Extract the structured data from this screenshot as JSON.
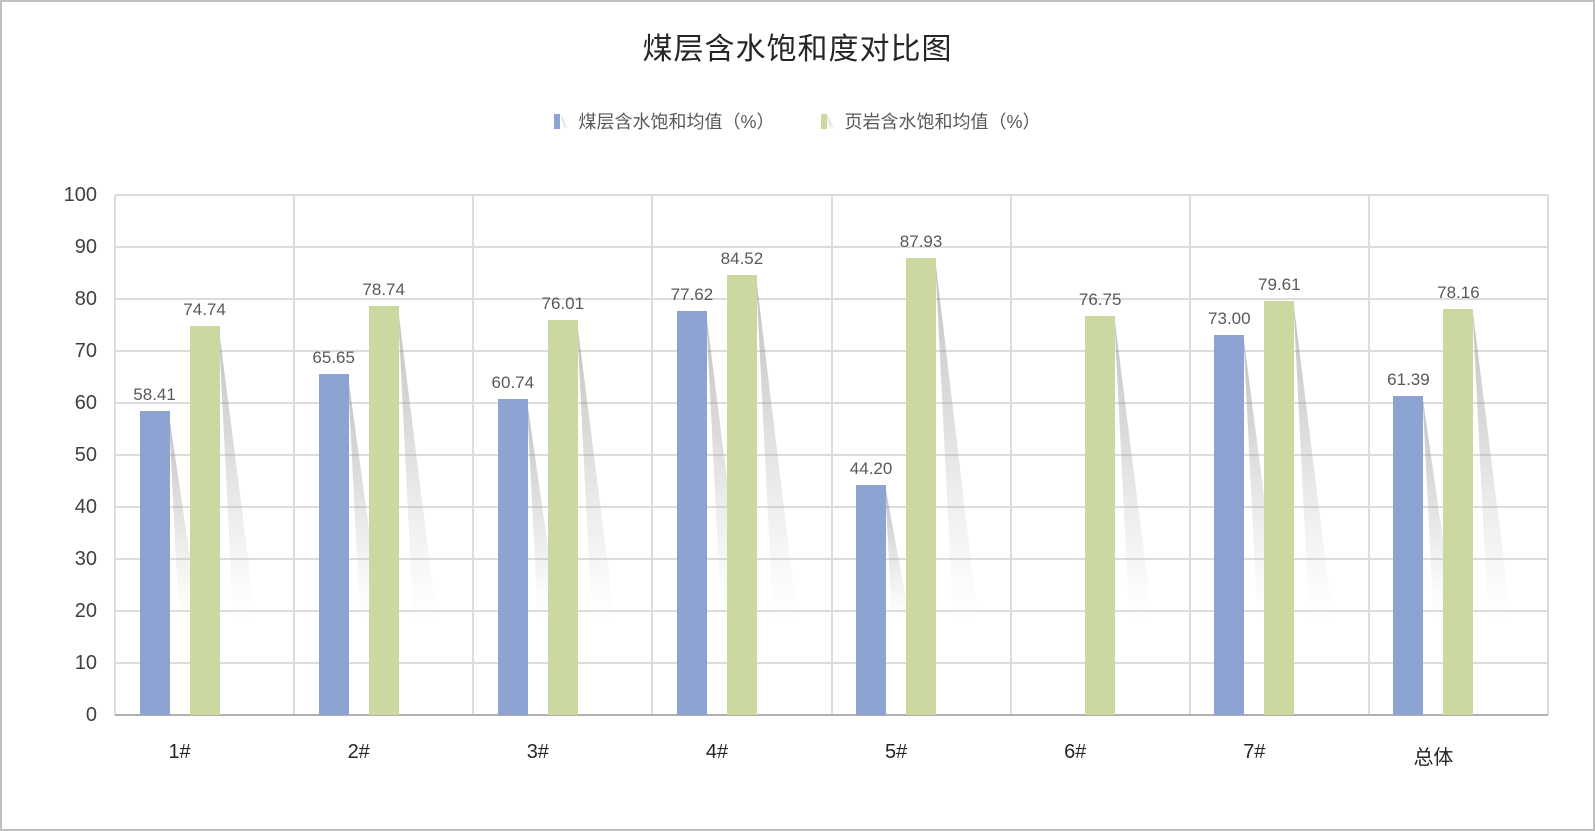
{
  "chart_data": {
    "type": "bar",
    "title": "煤层含水饱和度对比图",
    "categories": [
      "1#",
      "2#",
      "3#",
      "4#",
      "5#",
      "6#",
      "7#",
      "总体"
    ],
    "series": [
      {
        "name": "煤层含水饱和均值（%）",
        "color": "#8DA4D2",
        "values": [
          58.41,
          65.65,
          60.74,
          77.62,
          44.2,
          null,
          73.0,
          61.39
        ]
      },
      {
        "name": "页岩含水饱和均值（%）",
        "color": "#CBD9A1",
        "values": [
          74.74,
          78.74,
          76.01,
          84.52,
          87.93,
          76.75,
          79.61,
          78.16
        ]
      }
    ],
    "ylim": [
      0,
      100
    ],
    "ytick_step": 10,
    "ytick_labels": [
      "0",
      "10",
      "20",
      "30",
      "40",
      "50",
      "60",
      "70",
      "80",
      "90",
      "100"
    ],
    "grid": true,
    "legend_position": "top",
    "value_label_decimals": 2,
    "bar_shadow": true
  },
  "colors": {
    "series1_bar": "#8DA4D2",
    "series2_bar": "#CBD9A1",
    "gridline": "#DCDCDC",
    "axis_line": "#B0B0B0",
    "title_text": "#262626",
    "tick_text": "#404040",
    "data_label_text": "#595959",
    "legend_text": "#595959",
    "background": "#FFFFFF",
    "border": "#BFBFBF"
  }
}
